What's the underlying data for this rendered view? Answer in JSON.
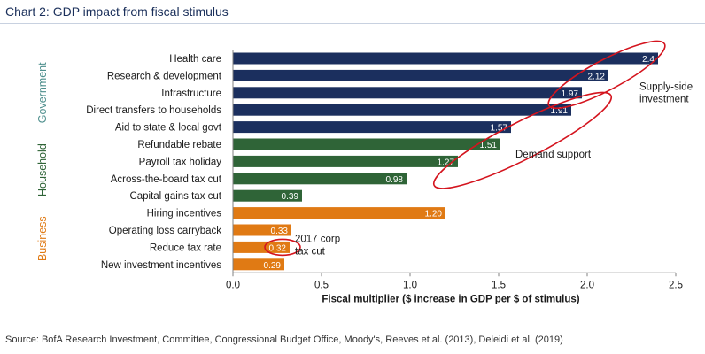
{
  "title": "Chart 2: GDP impact from fiscal stimulus",
  "source": "Source: BofA Research Investment, Committee, Congressional Budget Office, Moody's, Reeves et al. (2013), Deleidi et al. (2019)",
  "chart_data": {
    "type": "bar",
    "orientation": "horizontal",
    "title": "Chart 2: GDP impact from fiscal stimulus",
    "xlabel": "Fiscal multiplier ($ increase in GDP per $ of stimulus)",
    "xlim": [
      0,
      2.5
    ],
    "xticks": [
      "0.0",
      "0.5",
      "1.0",
      "1.5",
      "2.0",
      "2.5"
    ],
    "grid": false,
    "groups": [
      {
        "name": "Government",
        "color": "#1b2f5e",
        "bars": [
          {
            "label": "Health care",
            "value": 2.4,
            "value_label": "2.4"
          },
          {
            "label": "Research & development",
            "value": 2.12,
            "value_label": "2.12"
          },
          {
            "label": "Infrastructure",
            "value": 1.97,
            "value_label": "1.97"
          },
          {
            "label": "Direct transfers to households",
            "value": 1.91,
            "value_label": "1.91"
          },
          {
            "label": "Aid to state & local govt",
            "value": 1.57,
            "value_label": "1.57"
          }
        ]
      },
      {
        "name": "Household",
        "color": "#2f6437",
        "bars": [
          {
            "label": "Refundable rebate",
            "value": 1.51,
            "value_label": "1.51"
          },
          {
            "label": "Payroll tax holiday",
            "value": 1.27,
            "value_label": "1.27"
          },
          {
            "label": "Across-the-board tax cut",
            "value": 0.98,
            "value_label": "0.98"
          },
          {
            "label": "Capital gains tax cut",
            "value": 0.39,
            "value_label": "0.39"
          }
        ]
      },
      {
        "name": "Business",
        "color": "#e07a14",
        "bars": [
          {
            "label": "Hiring incentives",
            "value": 1.2,
            "value_label": "1.20"
          },
          {
            "label": "Operating loss carryback",
            "value": 0.33,
            "value_label": "0.33"
          },
          {
            "label": "Reduce tax rate",
            "value": 0.32,
            "value_label": "0.32"
          },
          {
            "label": "New investment incentives",
            "value": 0.29,
            "value_label": "0.29"
          }
        ]
      }
    ],
    "annotations": [
      {
        "text": [
          "Supply-side",
          "investment"
        ],
        "group": "Government",
        "bars": [
          0,
          1,
          2
        ]
      },
      {
        "text": [
          "Demand support"
        ],
        "group": "Household",
        "bars": [
          0,
          1
        ]
      },
      {
        "text": [
          "2017 corp",
          "tax cut"
        ],
        "group": "Business",
        "bars": [
          2
        ]
      }
    ],
    "highlight_color": "#d4141e"
  }
}
